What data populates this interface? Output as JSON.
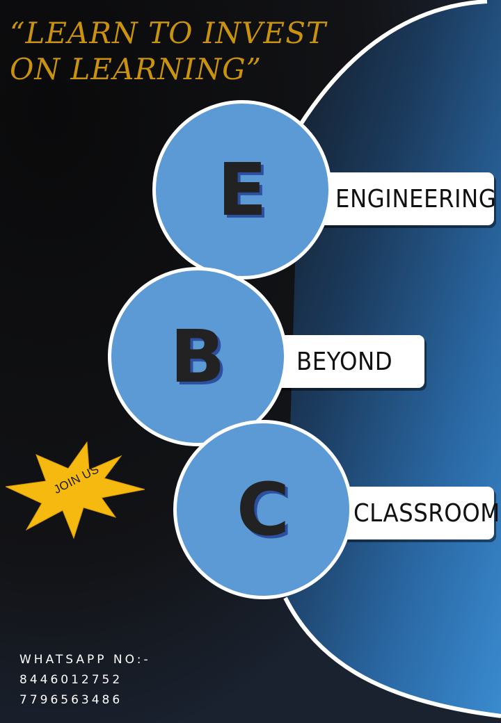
{
  "tagline": {
    "line1": "“LEARN TO INVEST",
    "line2": "ON LEARNING”"
  },
  "items": [
    {
      "letter": "E",
      "word": "ENGINEERING"
    },
    {
      "letter": "B",
      "word": "BEYOND"
    },
    {
      "letter": "C",
      "word": "CLASSROOM"
    }
  ],
  "badge": {
    "text": "JOIN US"
  },
  "contact": {
    "label": "WHATSAPP NO:-",
    "phone1": "8446012752",
    "phone2": "7796563486"
  },
  "colors": {
    "tagline": "#c9920f",
    "circle_fill": "#5c9ad6",
    "badge_fill": "#f5b90f",
    "panel_blue": "#2f7cc0"
  }
}
